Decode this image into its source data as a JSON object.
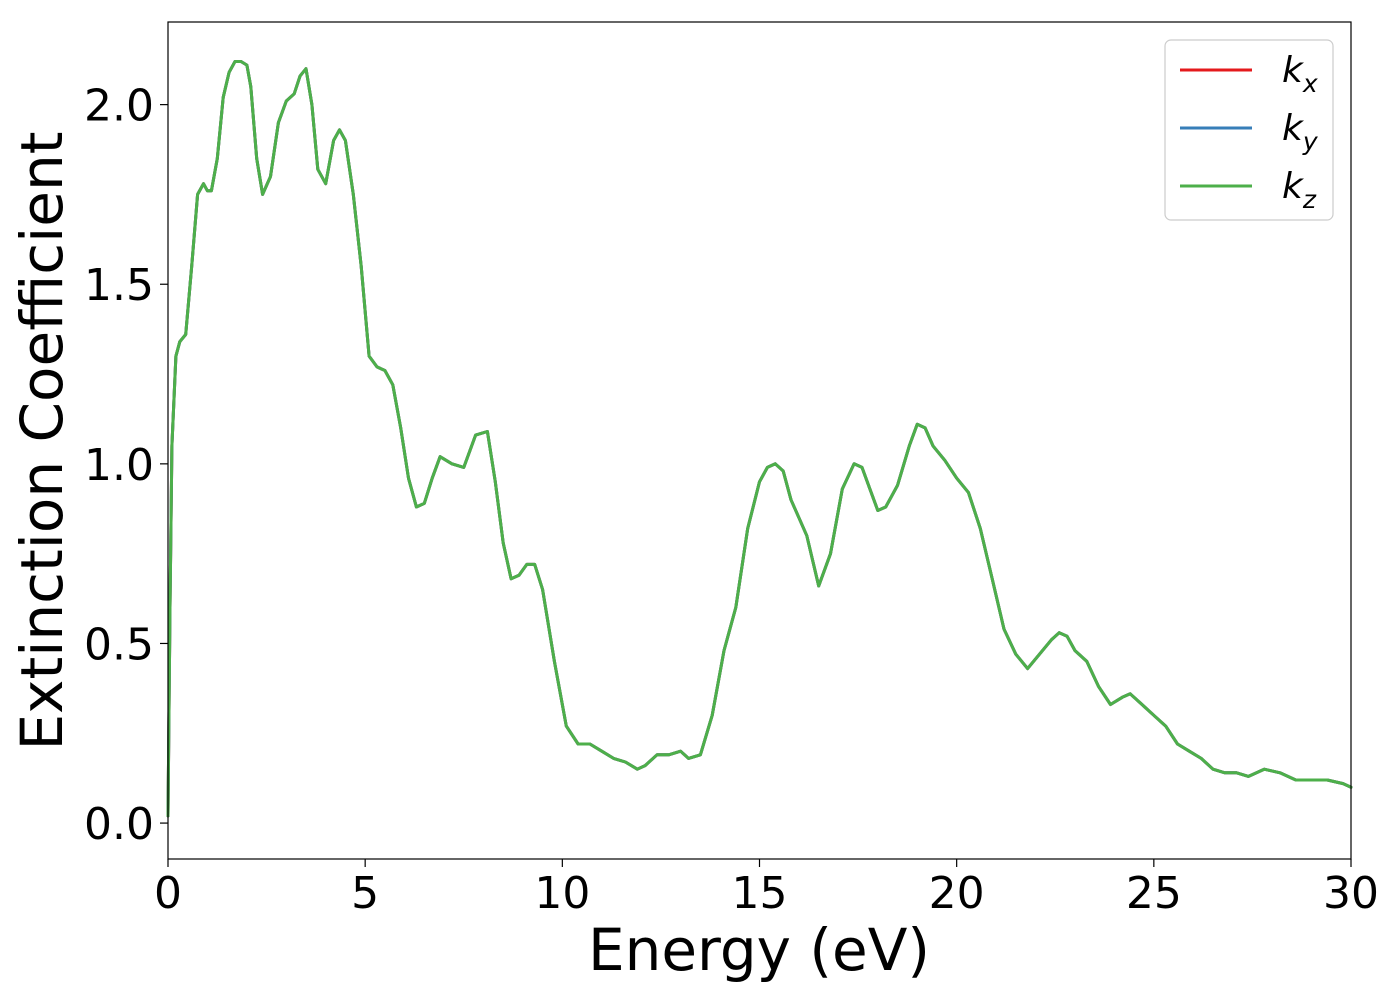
{
  "chart_data": {
    "type": "line",
    "title": "",
    "xlabel": "Energy (eV)",
    "ylabel": "Extinction Coefficient",
    "xlim": [
      0,
      30
    ],
    "ylim": [
      -0.1,
      2.23
    ],
    "xticks": [
      0,
      5,
      10,
      15,
      20,
      25,
      30
    ],
    "xtick_labels": [
      "0",
      "5",
      "10",
      "15",
      "20",
      "25",
      "30"
    ],
    "yticks": [
      0.0,
      0.5,
      1.0,
      1.5,
      2.0
    ],
    "ytick_labels": [
      "0.0",
      "0.5",
      "1.0",
      "1.5",
      "2.0"
    ],
    "grid": false,
    "legend_position": "top-right",
    "x": [
      0,
      0.05,
      0.1,
      0.2,
      0.3,
      0.45,
      0.6,
      0.75,
      0.9,
      1.0,
      1.1,
      1.25,
      1.4,
      1.55,
      1.7,
      1.85,
      2.0,
      2.1,
      2.25,
      2.4,
      2.6,
      2.8,
      3.0,
      3.2,
      3.35,
      3.5,
      3.65,
      3.8,
      4.0,
      4.2,
      4.35,
      4.5,
      4.7,
      4.9,
      5.1,
      5.3,
      5.5,
      5.7,
      5.9,
      6.1,
      6.3,
      6.5,
      6.7,
      6.9,
      7.2,
      7.5,
      7.8,
      8.1,
      8.3,
      8.5,
      8.7,
      8.9,
      9.1,
      9.3,
      9.5,
      9.8,
      10.1,
      10.4,
      10.7,
      11.0,
      11.3,
      11.6,
      11.9,
      12.1,
      12.4,
      12.7,
      13.0,
      13.2,
      13.5,
      13.8,
      14.1,
      14.4,
      14.7,
      15.0,
      15.2,
      15.4,
      15.6,
      15.8,
      16.0,
      16.2,
      16.5,
      16.8,
      17.1,
      17.4,
      17.6,
      17.8,
      18.0,
      18.2,
      18.5,
      18.8,
      19.0,
      19.2,
      19.4,
      19.7,
      20.0,
      20.3,
      20.6,
      20.9,
      21.2,
      21.5,
      21.8,
      22.1,
      22.4,
      22.6,
      22.8,
      23.0,
      23.3,
      23.6,
      23.9,
      24.2,
      24.4,
      24.7,
      25.0,
      25.3,
      25.6,
      25.9,
      26.2,
      26.5,
      26.8,
      27.1,
      27.4,
      27.8,
      28.2,
      28.6,
      29.0,
      29.4,
      29.8,
      30.0
    ],
    "series": [
      {
        "name": "kx",
        "color": "#e41a1c",
        "values": [
          0.02,
          0.6,
          1.05,
          1.3,
          1.34,
          1.36,
          1.55,
          1.75,
          1.78,
          1.76,
          1.76,
          1.85,
          2.02,
          2.09,
          2.12,
          2.12,
          2.11,
          2.05,
          1.85,
          1.75,
          1.8,
          1.95,
          2.01,
          2.03,
          2.08,
          2.1,
          2.0,
          1.82,
          1.78,
          1.9,
          1.93,
          1.9,
          1.75,
          1.55,
          1.3,
          1.27,
          1.26,
          1.22,
          1.1,
          0.96,
          0.88,
          0.89,
          0.96,
          1.02,
          1.0,
          0.99,
          1.08,
          1.09,
          0.95,
          0.78,
          0.68,
          0.69,
          0.72,
          0.72,
          0.65,
          0.45,
          0.27,
          0.22,
          0.22,
          0.2,
          0.18,
          0.17,
          0.15,
          0.16,
          0.19,
          0.19,
          0.2,
          0.18,
          0.19,
          0.3,
          0.48,
          0.6,
          0.82,
          0.95,
          0.99,
          1.0,
          0.98,
          0.9,
          0.85,
          0.8,
          0.66,
          0.75,
          0.93,
          1.0,
          0.99,
          0.93,
          0.87,
          0.88,
          0.94,
          1.05,
          1.11,
          1.1,
          1.05,
          1.01,
          0.96,
          0.92,
          0.82,
          0.68,
          0.54,
          0.47,
          0.43,
          0.47,
          0.51,
          0.53,
          0.52,
          0.48,
          0.45,
          0.38,
          0.33,
          0.35,
          0.36,
          0.33,
          0.3,
          0.27,
          0.22,
          0.2,
          0.18,
          0.15,
          0.14,
          0.14,
          0.13,
          0.15,
          0.14,
          0.12,
          0.12,
          0.12,
          0.11,
          0.1
        ]
      },
      {
        "name": "ky",
        "color": "#377eb8",
        "values": [
          0.02,
          0.6,
          1.05,
          1.3,
          1.34,
          1.36,
          1.55,
          1.75,
          1.78,
          1.76,
          1.76,
          1.85,
          2.02,
          2.09,
          2.12,
          2.12,
          2.11,
          2.05,
          1.85,
          1.75,
          1.8,
          1.95,
          2.01,
          2.03,
          2.08,
          2.1,
          2.0,
          1.82,
          1.78,
          1.9,
          1.93,
          1.9,
          1.75,
          1.55,
          1.3,
          1.27,
          1.26,
          1.22,
          1.1,
          0.96,
          0.88,
          0.89,
          0.96,
          1.02,
          1.0,
          0.99,
          1.08,
          1.09,
          0.95,
          0.78,
          0.68,
          0.69,
          0.72,
          0.72,
          0.65,
          0.45,
          0.27,
          0.22,
          0.22,
          0.2,
          0.18,
          0.17,
          0.15,
          0.16,
          0.19,
          0.19,
          0.2,
          0.18,
          0.19,
          0.3,
          0.48,
          0.6,
          0.82,
          0.95,
          0.99,
          1.0,
          0.98,
          0.9,
          0.85,
          0.8,
          0.66,
          0.75,
          0.93,
          1.0,
          0.99,
          0.93,
          0.87,
          0.88,
          0.94,
          1.05,
          1.11,
          1.1,
          1.05,
          1.01,
          0.96,
          0.92,
          0.82,
          0.68,
          0.54,
          0.47,
          0.43,
          0.47,
          0.51,
          0.53,
          0.52,
          0.48,
          0.45,
          0.38,
          0.33,
          0.35,
          0.36,
          0.33,
          0.3,
          0.27,
          0.22,
          0.2,
          0.18,
          0.15,
          0.14,
          0.14,
          0.13,
          0.15,
          0.14,
          0.12,
          0.12,
          0.12,
          0.11,
          0.1
        ]
      },
      {
        "name": "kz",
        "color": "#4daf4a",
        "values": [
          0.02,
          0.6,
          1.05,
          1.3,
          1.34,
          1.36,
          1.55,
          1.75,
          1.78,
          1.76,
          1.76,
          1.85,
          2.02,
          2.09,
          2.12,
          2.12,
          2.11,
          2.05,
          1.85,
          1.75,
          1.8,
          1.95,
          2.01,
          2.03,
          2.08,
          2.1,
          2.0,
          1.82,
          1.78,
          1.9,
          1.93,
          1.9,
          1.75,
          1.55,
          1.3,
          1.27,
          1.26,
          1.22,
          1.1,
          0.96,
          0.88,
          0.89,
          0.96,
          1.02,
          1.0,
          0.99,
          1.08,
          1.09,
          0.95,
          0.78,
          0.68,
          0.69,
          0.72,
          0.72,
          0.65,
          0.45,
          0.27,
          0.22,
          0.22,
          0.2,
          0.18,
          0.17,
          0.15,
          0.16,
          0.19,
          0.19,
          0.2,
          0.18,
          0.19,
          0.3,
          0.48,
          0.6,
          0.82,
          0.95,
          0.99,
          1.0,
          0.98,
          0.9,
          0.85,
          0.8,
          0.66,
          0.75,
          0.93,
          1.0,
          0.99,
          0.93,
          0.87,
          0.88,
          0.94,
          1.05,
          1.11,
          1.1,
          1.05,
          1.01,
          0.96,
          0.92,
          0.82,
          0.68,
          0.54,
          0.47,
          0.43,
          0.47,
          0.51,
          0.53,
          0.52,
          0.48,
          0.45,
          0.38,
          0.33,
          0.35,
          0.36,
          0.33,
          0.3,
          0.27,
          0.22,
          0.2,
          0.18,
          0.15,
          0.14,
          0.14,
          0.13,
          0.15,
          0.14,
          0.12,
          0.12,
          0.12,
          0.11,
          0.1
        ]
      }
    ],
    "legend": [
      {
        "symbol": "k",
        "subscript": "x",
        "color": "#e41a1c"
      },
      {
        "symbol": "k",
        "subscript": "y",
        "color": "#377eb8"
      },
      {
        "symbol": "k",
        "subscript": "z",
        "color": "#4daf4a"
      }
    ]
  }
}
